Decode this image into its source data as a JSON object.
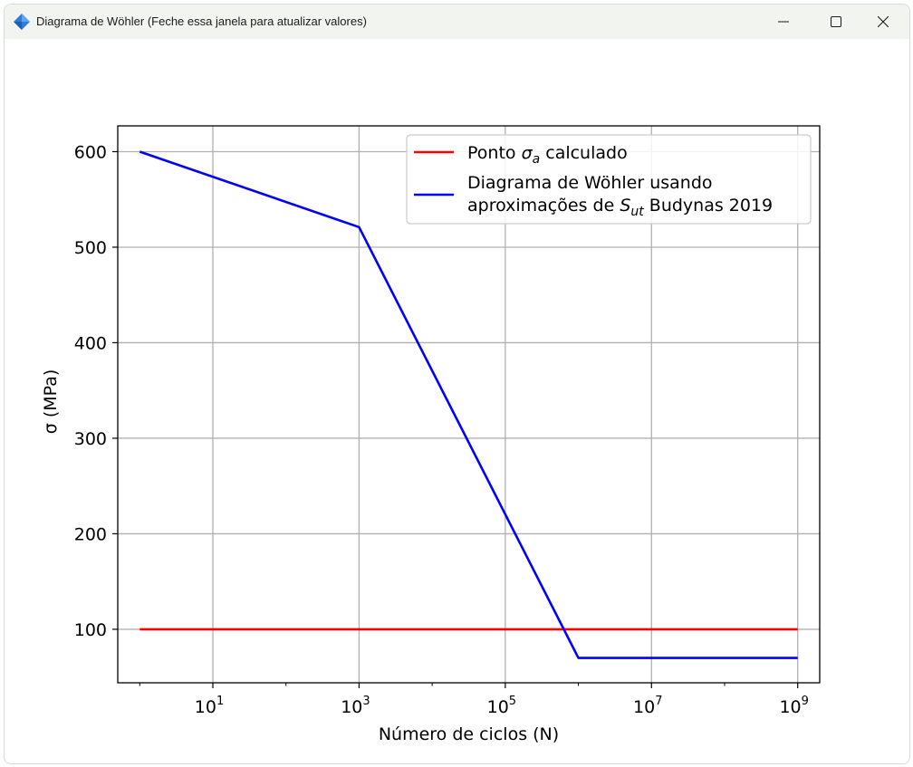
{
  "window": {
    "title": "Diagrama de Wöhler (Feche essa janela para atualizar valores)",
    "icon": "feather-icon",
    "controls": [
      "minimize-icon",
      "maximize-icon",
      "close-icon"
    ]
  },
  "colors": {
    "titlebar": "#f2f5ef",
    "calculated_line": "#ff0000",
    "wohler_line": "#0000ff",
    "grid": "#b0b0b0"
  },
  "chart_data": {
    "type": "line",
    "title": "",
    "xlabel": "Número de ciclos (N)",
    "ylabel": "σ (MPa)",
    "xscale": "log",
    "xlim": [
      0.5,
      2000000000
    ],
    "ylim": [
      44,
      627
    ],
    "grid": true,
    "legend_placement": "top-right",
    "x_ticks": [
      {
        "value": 10,
        "base": "10",
        "exp": "1"
      },
      {
        "value": 1000,
        "base": "10",
        "exp": "3"
      },
      {
        "value": 100000,
        "base": "10",
        "exp": "5"
      },
      {
        "value": 10000000,
        "base": "10",
        "exp": "7"
      },
      {
        "value": 1000000000,
        "base": "10",
        "exp": "9"
      }
    ],
    "y_ticks": [
      100,
      200,
      300,
      400,
      500,
      600
    ],
    "series": [
      {
        "name_parts": [
          "Ponto ",
          "σ",
          "a",
          " calculado"
        ],
        "color": "#ff0000",
        "x": [
          1,
          1000000000
        ],
        "y": [
          100,
          100
        ]
      },
      {
        "name_lines": [
          "Diagrama de Wöhler usando",
          "aproximações de "
        ],
        "name_math": [
          "S",
          "ut"
        ],
        "name_tail": " Budynas 2019",
        "color": "#0000ff",
        "x": [
          1,
          1000,
          1000000,
          1000000000
        ],
        "y": [
          600,
          521,
          70,
          70
        ]
      }
    ]
  }
}
